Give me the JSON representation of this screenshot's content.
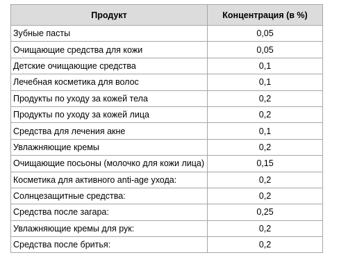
{
  "table": {
    "headers": {
      "product": "Продукт",
      "concentration": "Концентрация (в %)"
    },
    "rows": [
      {
        "product": "Зубные пасты",
        "concentration": "0,05"
      },
      {
        "product": "Очищающие средства для кожи",
        "concentration": "0,05"
      },
      {
        "product": "Детские очищающие средства",
        "concentration": "0,1"
      },
      {
        "product": "Лечебная косметика для волос",
        "concentration": "0,1"
      },
      {
        "product": "Продукты по уходу за кожей тела",
        "concentration": "0,2"
      },
      {
        "product": "Продукты по уходу за кожей лица",
        "concentration": "0,2"
      },
      {
        "product": "Средства для лечения акне",
        "concentration": "0,1"
      },
      {
        "product": "Увлажняющие кремы",
        "concentration": "0,2"
      },
      {
        "product": "Очищающие посьоны (молочко для кожи лица)",
        "concentration": "0,15"
      },
      {
        "product": "Косметика для активного anti-age ухода:",
        "concentration": "0,2"
      },
      {
        "product": "Солнцезащитные средства:",
        "concentration": "0,2"
      },
      {
        "product": "Средства после загара:",
        "concentration": "0,25"
      },
      {
        "product": "Увлажняющие кремы для рук:",
        "concentration": "0,2"
      },
      {
        "product": "Средства после бритья:",
        "concentration": "0,2"
      }
    ]
  },
  "colors": {
    "header_background": "#dcdcdc",
    "border": "#a6a6a6"
  }
}
